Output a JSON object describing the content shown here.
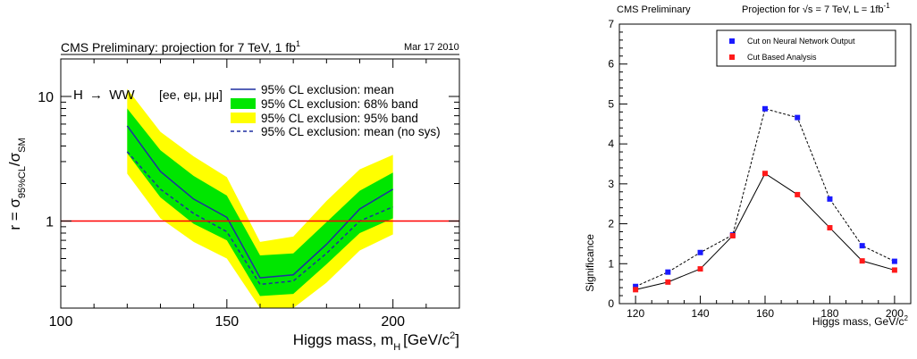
{
  "chart_data": [
    {
      "type": "area",
      "header": "CMS Preliminary: projection for 7 TeV, 1 fb",
      "header_sup": "1",
      "date": "Mar 17 2010",
      "process": "H",
      "process_arrow": "→",
      "process_final": "WW",
      "channels": "[ee, eμ, μμ]",
      "xlabel": "Higgs mass, m",
      "xlabel_sub": "H",
      "xlabel_units": "[GeV/c",
      "xlabel_units_sup": "2",
      "xlabel_close": "]",
      "ylabel_r": "r = σ",
      "ylabel_sub1": "95%CL",
      "ylabel_slash": "/σ",
      "ylabel_sub2": "SM",
      "y_scale": "log",
      "xlim": [
        100,
        220
      ],
      "ylim": [
        0.2,
        20
      ],
      "x_ticks": [
        100,
        150,
        200
      ],
      "y_ticks": [
        {
          "value": 1,
          "label": "1"
        },
        {
          "value": 10,
          "label": "10"
        }
      ],
      "x": [
        120,
        130,
        140,
        150,
        160,
        170,
        180,
        190,
        200
      ],
      "mean": [
        5.8,
        2.5,
        1.5,
        1.07,
        0.35,
        0.37,
        0.65,
        1.25,
        1.8
      ],
      "mean_nosys": [
        3.6,
        1.8,
        1.15,
        0.82,
        0.31,
        0.33,
        0.55,
        1.0,
        1.3
      ],
      "band68_low": [
        3.5,
        1.55,
        0.95,
        0.7,
        0.25,
        0.26,
        0.45,
        0.8,
        1.05
      ],
      "band68_high": [
        8.0,
        3.7,
        2.3,
        1.6,
        0.53,
        0.55,
        0.98,
        1.75,
        2.45
      ],
      "band95_low": [
        2.4,
        1.05,
        0.68,
        0.5,
        0.15,
        0.16,
        0.32,
        0.58,
        0.78
      ],
      "band95_high": [
        11.5,
        5.2,
        3.3,
        2.25,
        0.68,
        0.75,
        1.45,
        2.6,
        3.4
      ],
      "reference_line": 1,
      "legend": [
        {
          "label": "95% CL exclusion: mean",
          "kind": "line",
          "color": "#1f2fa0"
        },
        {
          "label": "95% CL exclusion: 68% band",
          "kind": "fill",
          "color": "#00e600"
        },
        {
          "label": "95% CL exclusion: 95% band",
          "kind": "fill",
          "color": "#ffff00"
        },
        {
          "label": "95% CL exclusion: mean (no sys)",
          "kind": "dash",
          "color": "#1f2fa0"
        }
      ],
      "colors": {
        "band68": "#00e600",
        "band95": "#ffff00",
        "mean": "#1f2fa0",
        "reference": "#ff0000"
      }
    },
    {
      "type": "scatter",
      "header_left": "CMS Preliminary",
      "header_right_a": "Projection for ",
      "header_right_root": "√s",
      "header_right_b": " = 7 TeV, L = 1fb",
      "header_right_sup": "-1",
      "xlabel": "Higgs mass, GeV/c",
      "xlabel_sup": "2",
      "ylabel": "Significance",
      "xlim": [
        115,
        205
      ],
      "ylim": [
        0,
        7
      ],
      "x_ticks": [
        120,
        140,
        160,
        180,
        200
      ],
      "y_ticks": [
        0,
        1,
        2,
        3,
        4,
        5,
        6,
        7
      ],
      "x": [
        120,
        130,
        140,
        150,
        160,
        170,
        180,
        190,
        200
      ],
      "series": [
        {
          "name": "Cut on Neural Network Output",
          "color": "#1a1aff",
          "line": "dash",
          "values": [
            0.43,
            0.79,
            1.28,
            1.72,
            4.88,
            4.66,
            2.62,
            1.45,
            1.06
          ]
        },
        {
          "name": "Cut Based Analysis",
          "color": "#ff1a1a",
          "line": "solid",
          "values": [
            0.35,
            0.54,
            0.87,
            1.7,
            3.26,
            2.73,
            1.9,
            1.07,
            0.84
          ]
        }
      ]
    }
  ]
}
